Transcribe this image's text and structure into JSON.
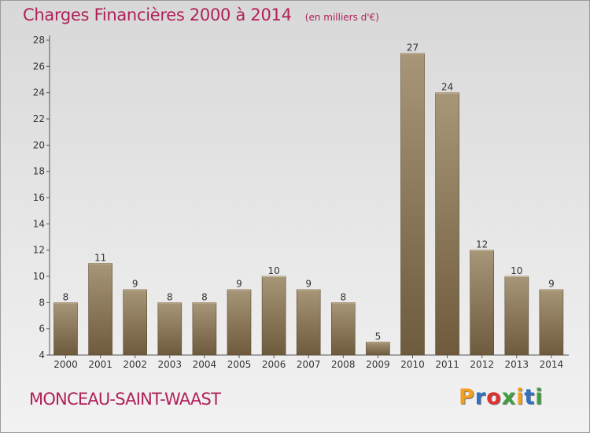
{
  "header": {
    "title": "Charges Financières 2000 à 2014",
    "unit": "(en milliers d'€)"
  },
  "footer": {
    "commune": "MONCEAU-SAINT-WAAST",
    "logo_text": "Proxiti"
  },
  "colors": {
    "title": "#b0205a",
    "bar_light": "#a89678",
    "bar_dark": "#6e5a3c",
    "logo_letters": [
      "#f0a020",
      "#3070c0",
      "#e03030",
      "#40a040",
      "#f0a020",
      "#3070c0",
      "#40a040"
    ]
  },
  "chart_data": {
    "type": "bar",
    "title": "Charges Financières 2000 à 2014",
    "subtitle": "(en milliers d'€)",
    "categories": [
      "2000",
      "2001",
      "2002",
      "2003",
      "2004",
      "2005",
      "2006",
      "2007",
      "2008",
      "2009",
      "2010",
      "2011",
      "2012",
      "2013",
      "2014"
    ],
    "values": [
      8,
      11,
      9,
      8,
      8,
      9,
      10,
      9,
      8,
      5,
      27,
      24,
      12,
      10,
      9
    ],
    "ylim": [
      4,
      28
    ],
    "yticks": [
      4,
      6,
      8,
      10,
      12,
      14,
      16,
      18,
      20,
      22,
      24,
      26,
      28
    ],
    "grid": false,
    "data_labels": true
  }
}
